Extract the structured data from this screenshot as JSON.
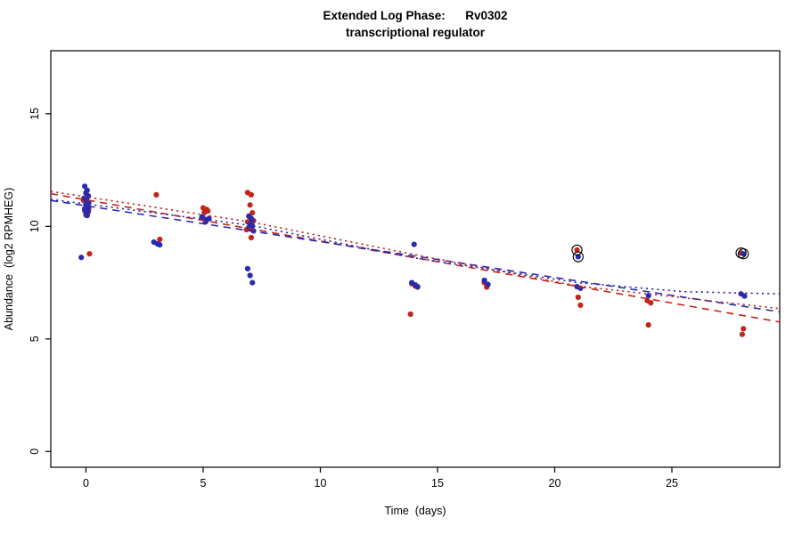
{
  "title": {
    "line1": "Extended Log Phase:      Rv0302",
    "line2": "transcriptional regulator"
  },
  "chart_data": {
    "type": "scatter",
    "title": "Extended Log Phase: Rv0302 transcriptional regulator",
    "xlabel": "Time  (days)",
    "ylabel": "Abundance  (log2 RPMHEG)",
    "xlim": [
      -1.5,
      29.6
    ],
    "ylim": [
      -0.7,
      17.8
    ],
    "xticks": [
      0,
      5,
      10,
      15,
      20,
      25
    ],
    "yticks": [
      0,
      5,
      10,
      15
    ],
    "grid": false,
    "legend": "none",
    "colors": {
      "red": "#c2261a",
      "blue": "#2a2aad",
      "outlier_ring": "#000000"
    },
    "series": [
      {
        "name": "red-points",
        "color_key": "red",
        "points": [
          [
            0,
            11.5
          ],
          [
            0.05,
            11.3
          ],
          [
            -0.1,
            11.15
          ],
          [
            0.1,
            11.05
          ],
          [
            0,
            10.95
          ],
          [
            0.12,
            10.8
          ],
          [
            -0.05,
            10.7
          ],
          [
            0.08,
            10.6
          ],
          [
            0,
            10.5
          ],
          [
            0.15,
            8.78
          ],
          [
            3,
            11.4
          ],
          [
            3.15,
            9.42
          ],
          [
            5,
            10.82
          ],
          [
            5.15,
            10.75
          ],
          [
            5.05,
            10.62
          ],
          [
            5.2,
            10.68
          ],
          [
            6.9,
            11.5
          ],
          [
            7.05,
            11.4
          ],
          [
            7,
            10.95
          ],
          [
            7.1,
            10.6
          ],
          [
            6.95,
            10.45
          ],
          [
            7.05,
            10.3
          ],
          [
            7.15,
            10.25
          ],
          [
            6.9,
            10.2
          ],
          [
            7,
            10.05
          ],
          [
            6.85,
            9.85
          ],
          [
            7.05,
            9.5
          ],
          [
            13.9,
            7.45
          ],
          [
            14.05,
            7.35
          ],
          [
            14.15,
            7.3
          ],
          [
            13.85,
            6.1
          ],
          [
            17,
            7.5
          ],
          [
            17.1,
            7.3
          ],
          [
            20.95,
            8.95
          ],
          [
            21,
            6.85
          ],
          [
            21.1,
            6.5
          ],
          [
            23.95,
            6.7
          ],
          [
            24.1,
            6.6
          ],
          [
            24,
            5.62
          ],
          [
            27.95,
            8.82
          ],
          [
            28.05,
            5.45
          ],
          [
            28,
            5.2
          ]
        ]
      },
      {
        "name": "blue-points",
        "color_key": "blue",
        "points": [
          [
            -0.05,
            11.78
          ],
          [
            0.05,
            11.6
          ],
          [
            0,
            11.48
          ],
          [
            0.1,
            11.35
          ],
          [
            -0.08,
            11.25
          ],
          [
            0.05,
            11.15
          ],
          [
            0.12,
            11.05
          ],
          [
            0,
            10.98
          ],
          [
            0.08,
            10.88
          ],
          [
            -0.05,
            10.78
          ],
          [
            0.1,
            10.68
          ],
          [
            0,
            10.58
          ],
          [
            0.05,
            10.48
          ],
          [
            -0.2,
            8.62
          ],
          [
            2.9,
            9.3
          ],
          [
            3.05,
            9.22
          ],
          [
            3.15,
            9.18
          ],
          [
            4.95,
            10.42
          ],
          [
            5.05,
            10.32
          ],
          [
            5.15,
            10.28
          ],
          [
            5.1,
            10.2
          ],
          [
            5.25,
            10.35
          ],
          [
            6.95,
            10.45
          ],
          [
            7.05,
            10.35
          ],
          [
            7.1,
            10.22
          ],
          [
            7,
            10.12
          ],
          [
            7.1,
            10.02
          ],
          [
            6.95,
            9.95
          ],
          [
            7.05,
            9.88
          ],
          [
            7.15,
            9.8
          ],
          [
            6.9,
            8.12
          ],
          [
            7,
            7.82
          ],
          [
            7.1,
            7.5
          ],
          [
            14,
            9.2
          ],
          [
            13.9,
            7.5
          ],
          [
            14.05,
            7.4
          ],
          [
            14.15,
            7.32
          ],
          [
            17,
            7.6
          ],
          [
            17.15,
            7.42
          ],
          [
            21,
            8.65
          ],
          [
            20.95,
            7.32
          ],
          [
            21.1,
            7.25
          ],
          [
            24,
            6.92
          ],
          [
            27.95,
            7.0
          ],
          [
            28.1,
            6.9
          ],
          [
            28.05,
            8.78
          ]
        ]
      }
    ],
    "outliers_marked": [
      [
        20.95,
        8.95
      ],
      [
        21,
        8.65
      ],
      [
        27.95,
        8.82
      ],
      [
        28.05,
        8.78
      ]
    ],
    "lines": [
      {
        "name": "red-dashed-fit",
        "color_key": "red",
        "style": "dashed",
        "points": [
          [
            -1.5,
            11.45
          ],
          [
            29.6,
            5.75
          ]
        ]
      },
      {
        "name": "blue-dashed-fit",
        "color_key": "blue",
        "style": "dashed",
        "points": [
          [
            -1.5,
            11.15
          ],
          [
            29.6,
            6.2
          ]
        ]
      },
      {
        "name": "red-dotted-fit",
        "color_key": "red",
        "style": "dotted",
        "points": [
          [
            -1.5,
            11.55
          ],
          [
            7,
            10.2
          ],
          [
            14,
            8.75
          ],
          [
            21,
            7.35
          ],
          [
            29.6,
            6.35
          ]
        ]
      },
      {
        "name": "blue-dotted-fit",
        "color_key": "blue",
        "style": "dotted",
        "points": [
          [
            -1.5,
            11.2
          ],
          [
            7,
            10.05
          ],
          [
            14,
            8.6
          ],
          [
            21,
            7.5
          ],
          [
            25.5,
            7.1
          ],
          [
            29.6,
            7.0
          ]
        ]
      }
    ]
  }
}
